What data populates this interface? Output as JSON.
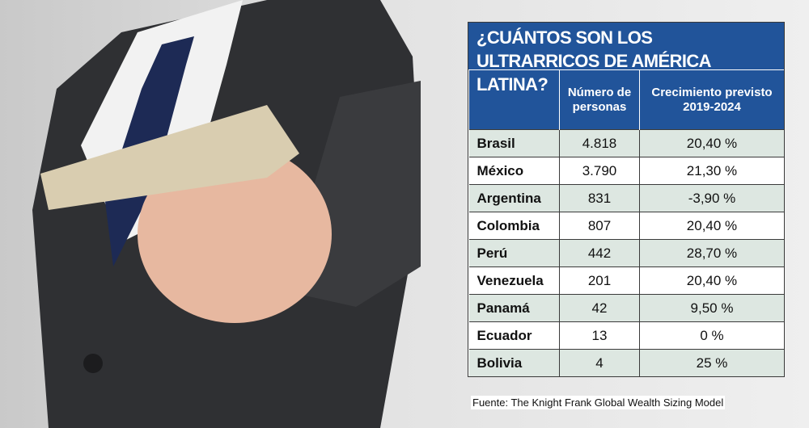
{
  "table": {
    "title": "¿CUÁNTOS SON LOS ULTRARRICOS DE AMÉRICA LATINA?",
    "headers": [
      "Número de personas",
      "Crecimiento previsto 2019-2024"
    ],
    "rows": [
      [
        "Brasil",
        "4.818",
        "20,40 %"
      ],
      [
        "México",
        "3.790",
        "21,30 %"
      ],
      [
        "Argentina",
        "831",
        "-3,90 %"
      ],
      [
        "Colombia",
        "807",
        "20,40 %"
      ],
      [
        "Perú",
        "442",
        "28,70 %"
      ],
      [
        "Venezuela",
        "201",
        "20,40 %"
      ],
      [
        "Panamá",
        "42",
        "9,50 %"
      ],
      [
        "Ecuador",
        "13",
        "0 %"
      ],
      [
        "Bolivia",
        "4",
        "25 %"
      ]
    ]
  },
  "source": "Fuente:  The Knight Frank Global Wealth Sizing Model"
}
